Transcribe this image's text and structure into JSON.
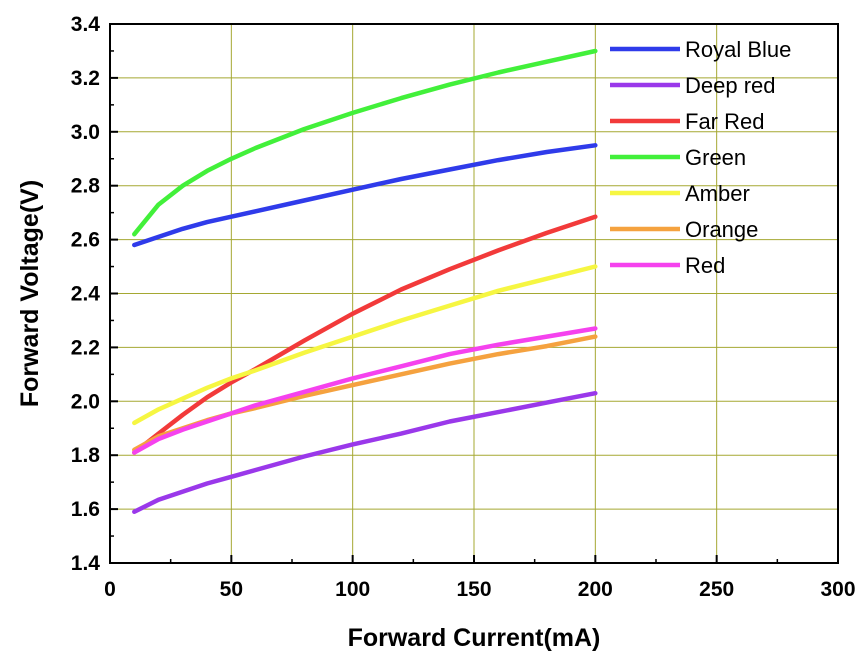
{
  "chart_data": {
    "type": "line",
    "title": "",
    "xlabel": "Forward Current(mA)",
    "ylabel": "Forward Voltage(V)",
    "xlim": [
      0,
      300
    ],
    "ylim": [
      1.4,
      3.4
    ],
    "x_ticks": [
      "0",
      "50",
      "100",
      "150",
      "200",
      "250",
      "300"
    ],
    "y_ticks": [
      "1.4",
      "1.6",
      "1.8",
      "2.0",
      "2.2",
      "2.4",
      "2.6",
      "2.8",
      "3.0",
      "3.2",
      "3.4"
    ],
    "grid": true,
    "legend_position": "top-right",
    "x": [
      10,
      20,
      30,
      40,
      50,
      60,
      80,
      100,
      120,
      140,
      160,
      180,
      200
    ],
    "series": [
      {
        "name": "Royal Blue",
        "color": "#2f3bea",
        "values": [
          2.58,
          2.61,
          2.64,
          2.665,
          2.685,
          2.705,
          2.745,
          2.785,
          2.825,
          2.86,
          2.895,
          2.925,
          2.95
        ]
      },
      {
        "name": "Deep red",
        "color": "#9a38ea",
        "values": [
          1.59,
          1.635,
          1.665,
          1.695,
          1.72,
          1.745,
          1.795,
          1.84,
          1.88,
          1.925,
          1.96,
          1.995,
          2.03
        ]
      },
      {
        "name": "Far Red",
        "color": "#f23a3a",
        "values": [
          1.81,
          1.88,
          1.95,
          2.015,
          2.07,
          2.12,
          2.225,
          2.325,
          2.415,
          2.49,
          2.56,
          2.625,
          2.685
        ]
      },
      {
        "name": "Green",
        "color": "#42f03a",
        "values": [
          2.62,
          2.73,
          2.8,
          2.855,
          2.9,
          2.94,
          3.01,
          3.07,
          3.125,
          3.175,
          3.22,
          3.26,
          3.3
        ]
      },
      {
        "name": "Amber",
        "color": "#f6f642",
        "values": [
          1.92,
          1.97,
          2.01,
          2.05,
          2.085,
          2.115,
          2.18,
          2.24,
          2.3,
          2.355,
          2.41,
          2.455,
          2.5
        ]
      },
      {
        "name": "Orange",
        "color": "#f5a23f",
        "values": [
          1.82,
          1.87,
          1.9,
          1.93,
          1.955,
          1.975,
          2.02,
          2.06,
          2.1,
          2.14,
          2.175,
          2.205,
          2.24
        ]
      },
      {
        "name": "Red",
        "color": "#f542ee",
        "values": [
          1.81,
          1.86,
          1.895,
          1.925,
          1.955,
          1.985,
          2.035,
          2.085,
          2.13,
          2.175,
          2.21,
          2.24,
          2.27
        ]
      }
    ]
  }
}
